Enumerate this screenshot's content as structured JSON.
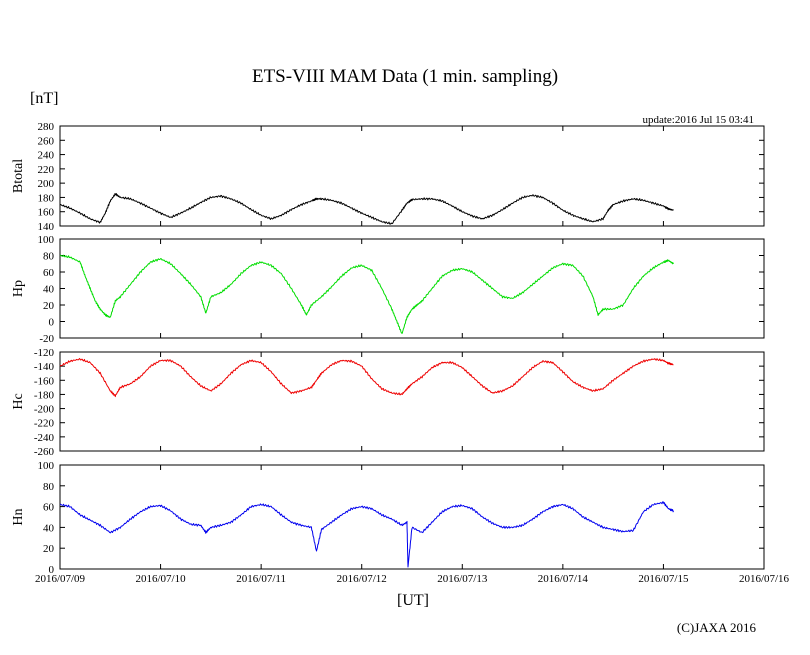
{
  "page": {
    "title": "ETS-VIII MAM Data (1 min. sampling)",
    "unit": "[nT]",
    "update": "update:2016 Jul 15 03:41",
    "xlabel": "[UT]",
    "copyright": "(C)JAXA 2016"
  },
  "chart_data": [
    {
      "type": "line",
      "ylabel": "Btotal",
      "color": "#000000",
      "ylim": [
        140,
        280
      ],
      "yticks": [
        140,
        160,
        180,
        200,
        220,
        240,
        260,
        280
      ],
      "xlim": [
        "2016/07/09",
        "2016/07/16"
      ],
      "xticks": [
        "2016/07/09",
        "2016/07/10",
        "2016/07/11",
        "2016/07/12",
        "2016/07/13",
        "2016/07/14",
        "2016/07/15",
        "2016/07/16"
      ],
      "series": [
        {
          "x": [
            0,
            0.1,
            0.2,
            0.3,
            0.4,
            0.45,
            0.5,
            0.55,
            0.6,
            0.7,
            0.8,
            0.9,
            1,
            1.1,
            1.2,
            1.3,
            1.4,
            1.5,
            1.6,
            1.7,
            1.8,
            1.9,
            2,
            2.1,
            2.2,
            2.3,
            2.4,
            2.5,
            2.55,
            2.6,
            2.7,
            2.8,
            2.9,
            3,
            3.1,
            3.2,
            3.3,
            3.4,
            3.45,
            3.5,
            3.6,
            3.7,
            3.8,
            3.9,
            4,
            4.1,
            4.2,
            4.3,
            4.4,
            4.5,
            4.6,
            4.7,
            4.8,
            4.9,
            5,
            5.1,
            5.2,
            5.3,
            5.4,
            5.45,
            5.5,
            5.6,
            5.7,
            5.8,
            5.9,
            6,
            6.05,
            6.1
          ],
          "values": [
            170,
            165,
            158,
            150,
            145,
            158,
            175,
            185,
            180,
            178,
            172,
            165,
            158,
            152,
            158,
            165,
            173,
            180,
            182,
            178,
            172,
            163,
            155,
            150,
            155,
            163,
            170,
            175,
            178,
            178,
            176,
            172,
            165,
            158,
            152,
            146,
            143,
            162,
            172,
            177,
            178,
            178,
            175,
            168,
            160,
            154,
            150,
            155,
            163,
            172,
            180,
            183,
            180,
            172,
            162,
            155,
            150,
            146,
            150,
            162,
            170,
            175,
            178,
            176,
            172,
            168,
            164,
            162
          ]
        }
      ]
    },
    {
      "type": "line",
      "ylabel": "Hp",
      "color": "#00dd00",
      "ylim": [
        -20,
        100
      ],
      "yticks": [
        -20,
        0,
        20,
        40,
        60,
        80,
        100
      ],
      "xlim": [
        "2016/07/09",
        "2016/07/16"
      ],
      "xticks": [
        "2016/07/09",
        "2016/07/10",
        "2016/07/11",
        "2016/07/12",
        "2016/07/13",
        "2016/07/14",
        "2016/07/15",
        "2016/07/16"
      ],
      "series": [
        {
          "x": [
            0,
            0.1,
            0.2,
            0.25,
            0.3,
            0.35,
            0.4,
            0.45,
            0.5,
            0.55,
            0.6,
            0.7,
            0.8,
            0.9,
            1,
            1.1,
            1.2,
            1.3,
            1.4,
            1.45,
            1.5,
            1.6,
            1.7,
            1.8,
            1.9,
            2,
            2.1,
            2.2,
            2.3,
            2.4,
            2.45,
            2.5,
            2.6,
            2.7,
            2.8,
            2.9,
            3,
            3.1,
            3.2,
            3.3,
            3.35,
            3.4,
            3.45,
            3.5,
            3.55,
            3.6,
            3.7,
            3.8,
            3.9,
            4,
            4.1,
            4.2,
            4.3,
            4.4,
            4.5,
            4.6,
            4.7,
            4.8,
            4.9,
            5,
            5.1,
            5.2,
            5.3,
            5.35,
            5.4,
            5.5,
            5.6,
            5.7,
            5.8,
            5.9,
            6,
            6.05,
            6.1
          ],
          "values": [
            80,
            78,
            72,
            55,
            40,
            25,
            15,
            8,
            5,
            25,
            30,
            45,
            60,
            72,
            76,
            70,
            58,
            45,
            30,
            10,
            30,
            35,
            45,
            58,
            68,
            72,
            68,
            58,
            40,
            20,
            8,
            20,
            30,
            42,
            55,
            65,
            68,
            62,
            40,
            15,
            0,
            -15,
            5,
            15,
            20,
            25,
            40,
            55,
            62,
            64,
            60,
            50,
            40,
            30,
            28,
            35,
            45,
            55,
            65,
            70,
            68,
            55,
            30,
            8,
            15,
            15,
            20,
            40,
            55,
            65,
            72,
            74,
            70
          ]
        }
      ]
    },
    {
      "type": "line",
      "ylabel": "Hc",
      "color": "#ee0000",
      "ylim": [
        -260,
        -120
      ],
      "yticks": [
        -260,
        -240,
        -220,
        -200,
        -180,
        -160,
        -140,
        -120
      ],
      "xlim": [
        "2016/07/09",
        "2016/07/16"
      ],
      "xticks": [
        "2016/07/09",
        "2016/07/10",
        "2016/07/11",
        "2016/07/12",
        "2016/07/13",
        "2016/07/14",
        "2016/07/15",
        "2016/07/16"
      ],
      "series": [
        {
          "x": [
            0,
            0.1,
            0.2,
            0.3,
            0.4,
            0.5,
            0.55,
            0.6,
            0.7,
            0.8,
            0.9,
            1,
            1.1,
            1.2,
            1.3,
            1.4,
            1.5,
            1.6,
            1.7,
            1.8,
            1.9,
            2,
            2.1,
            2.2,
            2.3,
            2.4,
            2.5,
            2.55,
            2.6,
            2.7,
            2.8,
            2.9,
            3,
            3.1,
            3.2,
            3.3,
            3.4,
            3.45,
            3.5,
            3.6,
            3.7,
            3.8,
            3.9,
            4,
            4.1,
            4.2,
            4.3,
            4.4,
            4.5,
            4.6,
            4.7,
            4.8,
            4.9,
            5,
            5.1,
            5.2,
            5.3,
            5.4,
            5.5,
            5.6,
            5.7,
            5.8,
            5.9,
            6,
            6.05,
            6.1
          ],
          "values": [
            -140,
            -133,
            -130,
            -135,
            -150,
            -175,
            -182,
            -170,
            -165,
            -155,
            -140,
            -132,
            -132,
            -140,
            -155,
            -168,
            -175,
            -165,
            -150,
            -138,
            -132,
            -135,
            -148,
            -165,
            -178,
            -175,
            -170,
            -160,
            -150,
            -138,
            -132,
            -133,
            -140,
            -158,
            -172,
            -178,
            -180,
            -172,
            -165,
            -155,
            -142,
            -135,
            -135,
            -142,
            -155,
            -168,
            -178,
            -175,
            -168,
            -155,
            -142,
            -133,
            -135,
            -148,
            -162,
            -170,
            -175,
            -172,
            -160,
            -150,
            -140,
            -133,
            -130,
            -132,
            -136,
            -138
          ]
        }
      ]
    },
    {
      "type": "line",
      "ylabel": "Hn",
      "color": "#0000ee",
      "ylim": [
        0,
        100
      ],
      "yticks": [
        0,
        20,
        40,
        60,
        80,
        100
      ],
      "xlim": [
        "2016/07/09",
        "2016/07/16"
      ],
      "xticks": [
        "2016/07/09",
        "2016/07/10",
        "2016/07/11",
        "2016/07/12",
        "2016/07/13",
        "2016/07/14",
        "2016/07/15",
        "2016/07/16"
      ],
      "series": [
        {
          "x": [
            0,
            0.1,
            0.2,
            0.3,
            0.4,
            0.5,
            0.6,
            0.7,
            0.8,
            0.9,
            1,
            1.1,
            1.2,
            1.3,
            1.4,
            1.45,
            1.5,
            1.6,
            1.7,
            1.8,
            1.9,
            2,
            2.1,
            2.2,
            2.3,
            2.4,
            2.5,
            2.55,
            2.6,
            2.7,
            2.8,
            2.9,
            3,
            3.1,
            3.2,
            3.3,
            3.4,
            3.45,
            3.46,
            3.5,
            3.6,
            3.7,
            3.8,
            3.9,
            4,
            4.1,
            4.2,
            4.3,
            4.4,
            4.5,
            4.6,
            4.7,
            4.8,
            4.9,
            5,
            5.1,
            5.2,
            5.3,
            5.4,
            5.5,
            5.6,
            5.7,
            5.8,
            5.9,
            6,
            6.05,
            6.1
          ],
          "values": [
            62,
            60,
            52,
            47,
            42,
            35,
            40,
            48,
            55,
            60,
            61,
            56,
            48,
            43,
            42,
            35,
            40,
            42,
            45,
            52,
            60,
            62,
            60,
            52,
            45,
            42,
            40,
            17,
            38,
            45,
            52,
            58,
            60,
            58,
            52,
            48,
            42,
            45,
            2,
            40,
            35,
            45,
            55,
            60,
            61,
            58,
            50,
            44,
            40,
            40,
            42,
            48,
            55,
            60,
            62,
            58,
            50,
            45,
            40,
            38,
            36,
            37,
            55,
            62,
            64,
            58,
            56
          ]
        }
      ]
    }
  ]
}
